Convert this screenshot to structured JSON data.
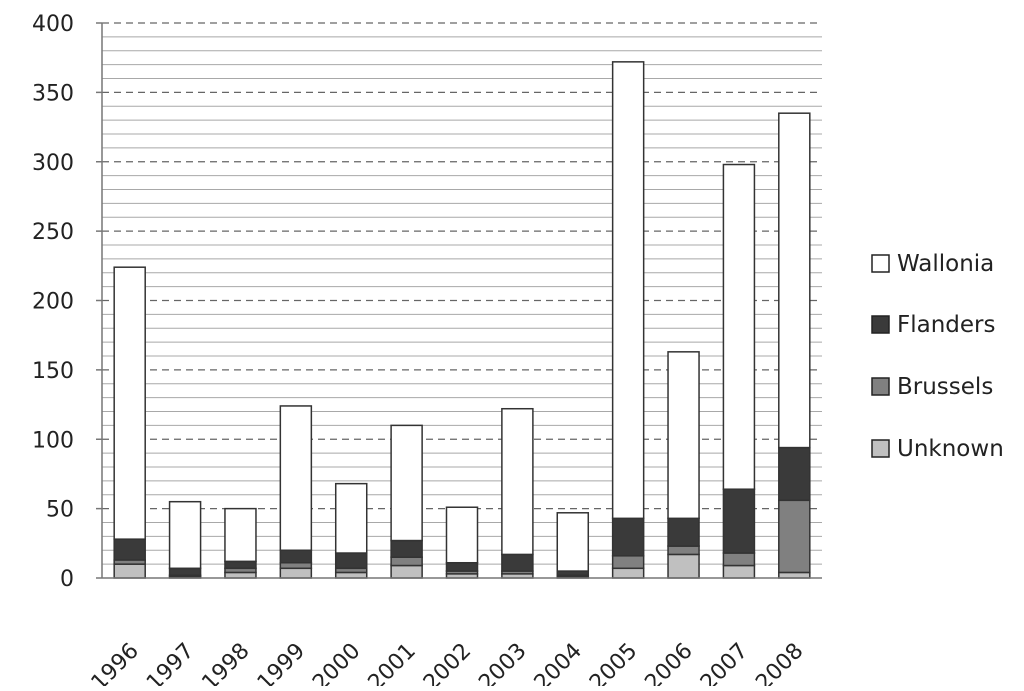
{
  "chart_data": {
    "type": "bar",
    "stacked": true,
    "title": "",
    "xlabel": "",
    "ylabel": "",
    "ylim": [
      0,
      400
    ],
    "yticks": [
      0,
      50,
      100,
      150,
      200,
      250,
      300,
      350,
      400
    ],
    "grid": {
      "major": "dashed",
      "minor": "solid",
      "minor_step": 10
    },
    "legend_position": "right",
    "categories": [
      "1996",
      "1997",
      "1998",
      "1999",
      "2000",
      "2001",
      "2002",
      "2003",
      "2004",
      "2005",
      "2006",
      "2007",
      "2008"
    ],
    "series": [
      {
        "name": "Unknown",
        "color": "#c0c0c0",
        "values": [
          10,
          1,
          4,
          7,
          4,
          9,
          3,
          3,
          1,
          7,
          17,
          9,
          4
        ]
      },
      {
        "name": "Brussels",
        "color": "#808080",
        "values": [
          3,
          1,
          3,
          4,
          3,
          6,
          2,
          2,
          1,
          9,
          6,
          9,
          52
        ]
      },
      {
        "name": "Flanders",
        "color": "#3a3a3a",
        "values": [
          15,
          5,
          5,
          9,
          11,
          12,
          6,
          12,
          3,
          27,
          20,
          46,
          38
        ]
      },
      {
        "name": "Wallonia",
        "color": "#ffffff",
        "values": [
          196,
          48,
          38,
          104,
          50,
          83,
          40,
          105,
          42,
          329,
          120,
          234,
          241
        ]
      }
    ],
    "legend_order": [
      "Wallonia",
      "Flanders",
      "Brussels",
      "Unknown"
    ]
  }
}
